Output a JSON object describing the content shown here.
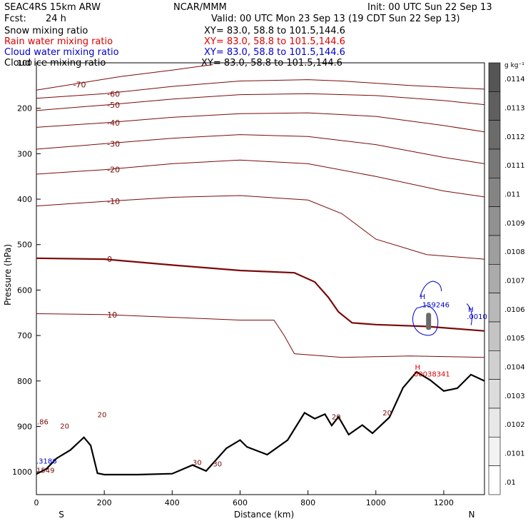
{
  "header": {
    "model": "SEAC4RS 15km ARW",
    "org": "NCAR/MMM",
    "init": "Init: 00 UTC Sun 22 Sep 13",
    "fcst_label": "Fcst:",
    "fcst_value": "24 h",
    "valid": "Valid: 00 UTC Mon 23 Sep 13 (19 CDT Sun 22 Sep 13)"
  },
  "fields": [
    {
      "label": "Snow mixing ratio",
      "xy": "XY=  83.0, 58.8 to 101.5,144.6",
      "color": "#000000"
    },
    {
      "label": "Rain water mixing ratio",
      "xy": "XY=  83.0, 58.8 to 101.5,144.6",
      "color": "#e00000"
    },
    {
      "label": "Cloud water mixing ratio",
      "xy": "XY=  83.0, 58.8 to 101.5,144.6",
      "color": "#0000cc"
    },
    {
      "label": "Cloud ice mixing ratio",
      "xy": "XY=  83.0, 58.8 to 101.5,144.6",
      "color": "#000000"
    }
  ],
  "chart_data": {
    "type": "cross-section",
    "xlabel": "Distance (km)",
    "ylabel": "Pressure (hPa)",
    "xlim": [
      0,
      1320
    ],
    "ylim": [
      1050,
      100
    ],
    "xticks": [
      0,
      200,
      400,
      600,
      800,
      1000,
      1200
    ],
    "yticks": [
      100,
      200,
      300,
      400,
      500,
      600,
      700,
      800,
      900,
      1000
    ],
    "x_end_labels": {
      "left": "S",
      "right": "N"
    },
    "colorbar": {
      "units": "g kg⁻¹",
      "levels": [
        ".0114",
        ".0113",
        ".0112",
        ".0111",
        ".011",
        ".0109",
        ".0108",
        ".0107",
        ".0106",
        ".0105",
        ".0104",
        ".0103",
        ".0102",
        ".0101",
        ".01"
      ],
      "colors": [
        "#555555",
        "#5f5f5f",
        "#6b6b6b",
        "#777777",
        "#848484",
        "#919191",
        "#9e9e9e",
        "#ababab",
        "#b8b8b8",
        "#c4c4c4",
        "#d0d0d0",
        "#dcdcdc",
        "#e8e8e8",
        "#f2f2f2",
        "#ffffff"
      ]
    },
    "temperature_contours": [
      {
        "level": -70,
        "label": "-70",
        "points": [
          [
            0,
            160
          ],
          [
            100,
            148
          ],
          [
            250,
            130
          ],
          [
            400,
            116
          ],
          [
            520,
            104
          ]
        ]
      },
      {
        "level": -60,
        "label": "-60",
        "points": [
          [
            0,
            178
          ],
          [
            200,
            168
          ],
          [
            400,
            152
          ],
          [
            600,
            140
          ],
          [
            800,
            137
          ],
          [
            900,
            140
          ],
          [
            1100,
            150
          ],
          [
            1320,
            158
          ]
        ]
      },
      {
        "level": -50,
        "label": "-50",
        "points": [
          [
            0,
            205
          ],
          [
            200,
            193
          ],
          [
            400,
            180
          ],
          [
            600,
            170
          ],
          [
            800,
            168
          ],
          [
            1000,
            172
          ],
          [
            1200,
            183
          ],
          [
            1320,
            192
          ]
        ]
      },
      {
        "level": -40,
        "label": "-40",
        "points": [
          [
            0,
            242
          ],
          [
            200,
            232
          ],
          [
            400,
            220
          ],
          [
            600,
            212
          ],
          [
            800,
            210
          ],
          [
            1000,
            218
          ],
          [
            1200,
            238
          ],
          [
            1320,
            252
          ]
        ]
      },
      {
        "level": -30,
        "label": "-30",
        "points": [
          [
            0,
            290
          ],
          [
            200,
            278
          ],
          [
            400,
            266
          ],
          [
            600,
            258
          ],
          [
            800,
            262
          ],
          [
            1000,
            280
          ],
          [
            1200,
            308
          ],
          [
            1320,
            322
          ]
        ]
      },
      {
        "level": -20,
        "label": "-20",
        "points": [
          [
            0,
            345
          ],
          [
            200,
            335
          ],
          [
            400,
            322
          ],
          [
            600,
            314
          ],
          [
            800,
            322
          ],
          [
            1000,
            350
          ],
          [
            1200,
            382
          ],
          [
            1320,
            395
          ]
        ]
      },
      {
        "level": -10,
        "label": "-10",
        "points": [
          [
            0,
            415
          ],
          [
            200,
            405
          ],
          [
            400,
            396
          ],
          [
            600,
            392
          ],
          [
            800,
            402
          ],
          [
            900,
            432
          ],
          [
            1000,
            488
          ],
          [
            1150,
            522
          ],
          [
            1320,
            532
          ]
        ]
      },
      {
        "level": 0,
        "label": "0",
        "points": [
          [
            0,
            530
          ],
          [
            200,
            532
          ],
          [
            400,
            545
          ],
          [
            600,
            557
          ],
          [
            760,
            562
          ],
          [
            820,
            582
          ],
          [
            860,
            616
          ],
          [
            890,
            648
          ],
          [
            930,
            672
          ],
          [
            1000,
            676
          ],
          [
            1150,
            680
          ],
          [
            1320,
            690
          ]
        ]
      },
      {
        "level": 10,
        "label": "10",
        "points": [
          [
            0,
            652
          ],
          [
            200,
            654
          ],
          [
            400,
            660
          ],
          [
            600,
            666
          ],
          [
            700,
            666
          ],
          [
            730,
            700
          ],
          [
            760,
            740
          ],
          [
            900,
            748
          ],
          [
            1100,
            745
          ],
          [
            1320,
            748
          ]
        ]
      }
    ],
    "terrain_km_hpa": [
      [
        0,
        1005
      ],
      [
        30,
        993
      ],
      [
        60,
        970
      ],
      [
        100,
        952
      ],
      [
        140,
        924
      ],
      [
        160,
        942
      ],
      [
        180,
        1003
      ],
      [
        200,
        1006
      ],
      [
        300,
        1006
      ],
      [
        400,
        1004
      ],
      [
        460,
        985
      ],
      [
        500,
        998
      ],
      [
        560,
        948
      ],
      [
        600,
        930
      ],
      [
        620,
        945
      ],
      [
        680,
        962
      ],
      [
        740,
        930
      ],
      [
        790,
        870
      ],
      [
        820,
        883
      ],
      [
        850,
        873
      ],
      [
        870,
        898
      ],
      [
        890,
        879
      ],
      [
        920,
        918
      ],
      [
        960,
        897
      ],
      [
        990,
        915
      ],
      [
        1040,
        880
      ],
      [
        1080,
        815
      ],
      [
        1120,
        780
      ],
      [
        1160,
        798
      ],
      [
        1200,
        822
      ],
      [
        1240,
        816
      ],
      [
        1280,
        786
      ],
      [
        1320,
        800
      ]
    ],
    "cloud_water_max": ".159246",
    "cloud_water_right": ".0010",
    "rain_max": ".00038341",
    "left_edge_labels": [
      ".86",
      ".3186",
      "1549"
    ],
    "contour_labels_sfc": [
      "20",
      "20",
      "20",
      "20",
      "30",
      "30"
    ]
  }
}
